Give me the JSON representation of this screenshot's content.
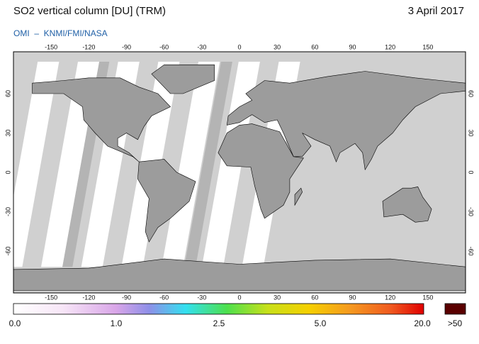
{
  "header": {
    "title": "SO2 vertical column [DU] (TRM)",
    "date": "3 April 2017",
    "subtitle": "OMI  –  KNMI/FMI/NASA"
  },
  "map": {
    "lon_ticks_top": [
      -150,
      -120,
      -90,
      -60,
      -30,
      0,
      30,
      60,
      90,
      120,
      150
    ],
    "lon_ticks_bottom": [
      -150,
      -120,
      -90,
      -60,
      -30,
      0,
      30,
      60,
      90,
      120,
      150
    ],
    "lat_ticks_left": [
      60,
      30,
      0,
      -30,
      -60
    ],
    "lat_ticks_right": [
      60,
      30,
      0,
      -30,
      -60
    ]
  },
  "colorbar": {
    "labels": [
      "0.0",
      "1.0",
      "2.5",
      "5.0",
      "20.0",
      ">50"
    ]
  }
}
